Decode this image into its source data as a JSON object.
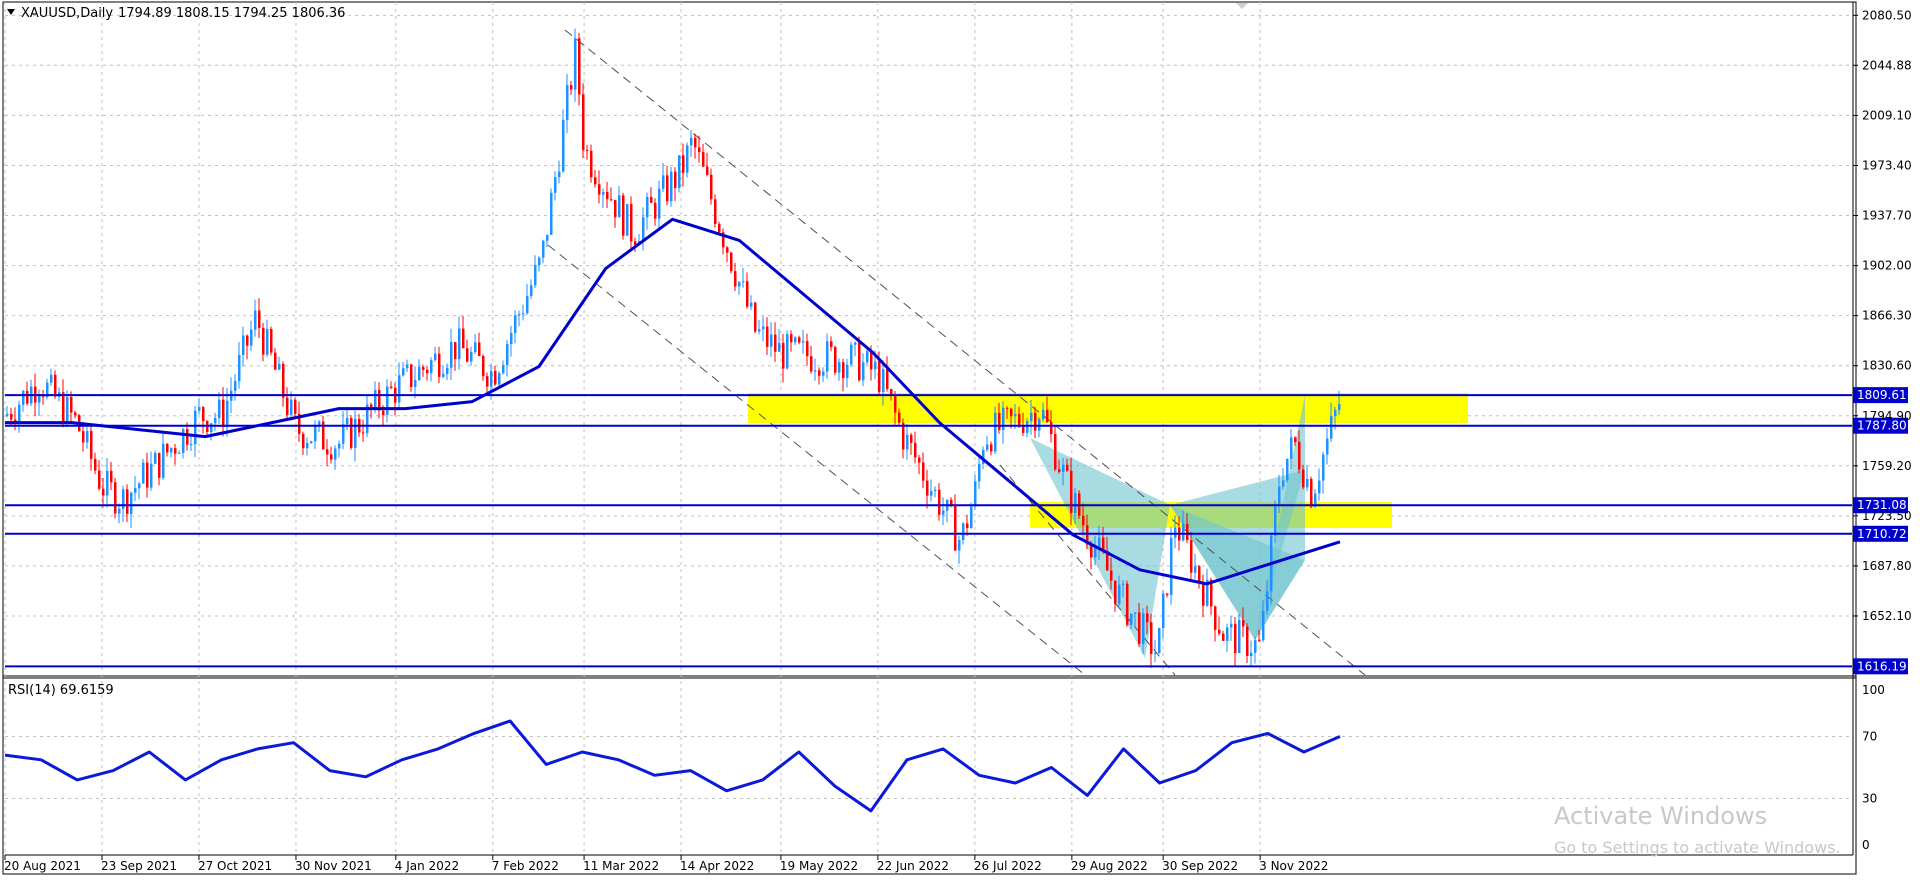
{
  "header": {
    "symbol": "XAUUSD,Daily",
    "ohlc": "1794.89 1808.15 1794.25 1806.36"
  },
  "rsi_header": "RSI(14) 69.6159",
  "watermark": {
    "title": "Activate Windows",
    "subtitle": "Go to Settings to activate Windows."
  },
  "colors": {
    "candle_up": "#1e90ff",
    "candle_down": "#ff0000",
    "ma_line": "#0000cd",
    "channel": "#505050",
    "zone": "#ffff00",
    "pattern": "#6fc3cf",
    "rsi_line": "#0a1ad8",
    "level_line": "#0000cd"
  },
  "price_axis": {
    "labels": [
      "2080.50",
      "2044.88",
      "2009.10",
      "1973.40",
      "1937.70",
      "1902.00",
      "1866.30",
      "1830.60",
      "1794.90",
      "1759.20",
      "1723.50",
      "1687.80",
      "1652.10"
    ],
    "values": [
      2080.5,
      2044.88,
      2009.1,
      1973.4,
      1937.7,
      1902.0,
      1866.3,
      1830.6,
      1794.9,
      1759.2,
      1723.5,
      1687.8,
      1652.1
    ],
    "min": 1610,
    "max": 2090
  },
  "time_axis": [
    "20 Aug 2021",
    "23 Sep 2021",
    "27 Oct 2021",
    "30 Nov 2021",
    "4 Jan 2022",
    "7 Feb 2022",
    "11 Mar 2022",
    "14 Apr 2022",
    "19 May 2022",
    "22 Jun 2022",
    "26 Jul 2022",
    "29 Aug 2022",
    "30 Sep 2022",
    "3 Nov 2022"
  ],
  "rsi_axis": {
    "labels": [
      "100",
      "70",
      "30",
      "0"
    ],
    "values": [
      100,
      70,
      30,
      0
    ]
  },
  "levels": [
    {
      "label": "1809.61",
      "price": 1809.61
    },
    {
      "label": "1787.80",
      "price": 1787.8
    },
    {
      "label": "1731.08",
      "price": 1731.08
    },
    {
      "label": "1710.72",
      "price": 1710.72
    },
    {
      "label": "1616.19",
      "price": 1616.19
    }
  ],
  "chart_data": {
    "type": "candlestick",
    "symbol": "XAUUSD",
    "timeframe": "Daily",
    "last": {
      "open": 1794.89,
      "high": 1808.15,
      "low": 1794.25,
      "close": 1806.36
    },
    "close_path": [
      [
        "20 Aug 2021",
        1795
      ],
      [
        "1 Sep 2021",
        1820
      ],
      [
        "14 Sep 2021",
        1790
      ],
      [
        "23 Sep 2021",
        1745
      ],
      [
        "30 Sep 2021",
        1735
      ],
      [
        "12 Oct 2021",
        1760
      ],
      [
        "27 Oct 2021",
        1795
      ],
      [
        "4 Nov 2021",
        1795
      ],
      [
        "16 Nov 2021",
        1865
      ],
      [
        "30 Nov 2021",
        1785
      ],
      [
        "15 Dec 2021",
        1775
      ],
      [
        "4 Jan 2022",
        1815
      ],
      [
        "25 Jan 2022",
        1845
      ],
      [
        "7 Feb 2022",
        1825
      ],
      [
        "24 Feb 2022",
        1905
      ],
      [
        "8 Mar 2022",
        2055
      ],
      [
        "11 Mar 2022",
        1985
      ],
      [
        "28 Mar 2022",
        1925
      ],
      [
        "14 Apr 2022",
        1970
      ],
      [
        "18 Apr 2022",
        1990
      ],
      [
        "10 May 2022",
        1855
      ],
      [
        "19 May 2022",
        1840
      ],
      [
        "13 Jun 2022",
        1835
      ],
      [
        "22 Jun 2022",
        1825
      ],
      [
        "1 Jul 2022",
        1780
      ],
      [
        "21 Jul 2022",
        1705
      ],
      [
        "26 Jul 2022",
        1740
      ],
      [
        "29 Jul 2022",
        1780
      ],
      [
        "18 Aug 2022",
        1800
      ],
      [
        "29 Aug 2022",
        1735
      ],
      [
        "15 Sep 2022",
        1665
      ],
      [
        "28 Sep 2022",
        1625
      ],
      [
        "4 Oct 2022",
        1720
      ],
      [
        "21 Oct 2022",
        1640
      ],
      [
        "3 Nov 2022",
        1630
      ],
      [
        "10 Nov 2022",
        1755
      ],
      [
        "15 Nov 2022",
        1775
      ],
      [
        "21 Nov 2022",
        1740
      ],
      [
        "1 Dec 2022",
        1806.36
      ]
    ],
    "ma": [
      1790,
      1790,
      1785,
      1780,
      1790,
      1800,
      1800,
      1805,
      1830,
      1900,
      1935,
      1920,
      1880,
      1840,
      1790,
      1750,
      1710,
      1685,
      1675,
      1690,
      1705
    ],
    "rsi": [
      58,
      55,
      42,
      48,
      60,
      42,
      55,
      62,
      66,
      48,
      44,
      55,
      62,
      72,
      80,
      52,
      60,
      55,
      45,
      48,
      35,
      42,
      60,
      38,
      22,
      55,
      62,
      45,
      40,
      50,
      32,
      62,
      40,
      48,
      66,
      72,
      60,
      70
    ]
  }
}
